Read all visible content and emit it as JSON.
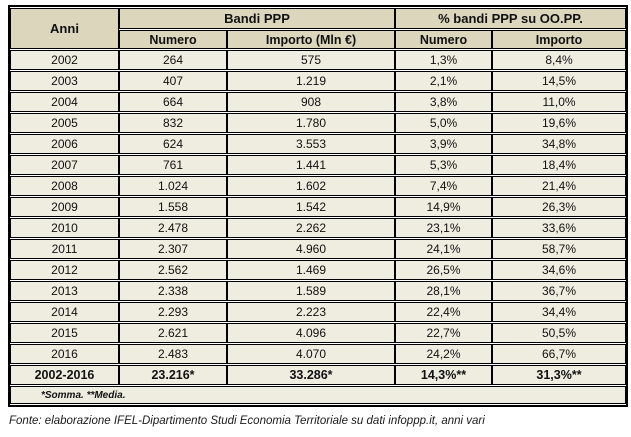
{
  "colors": {
    "header_bg": "#dcd6bc",
    "row_bg": "#efece0",
    "border": "#000000",
    "text": "#111111"
  },
  "chart_data": {
    "type": "table",
    "corner": "Anni",
    "groups": [
      "Bandi PPP",
      "% bandi PPP su OO.PP."
    ],
    "sub_columns": [
      "Numero",
      "Importo (Mln €)",
      "Numero",
      "Importo"
    ],
    "rows": [
      [
        "2002",
        "264",
        "575",
        "1,3%",
        "8,4%"
      ],
      [
        "2003",
        "407",
        "1.219",
        "2,1%",
        "14,5%"
      ],
      [
        "2004",
        "664",
        "908",
        "3,8%",
        "11,0%"
      ],
      [
        "2005",
        "832",
        "1.780",
        "5,0%",
        "19,6%"
      ],
      [
        "2006",
        "624",
        "3.553",
        "3,9%",
        "34,8%"
      ],
      [
        "2007",
        "761",
        "1.441",
        "5,3%",
        "18,4%"
      ],
      [
        "2008",
        "1.024",
        "1.602",
        "7,4%",
        "21,4%"
      ],
      [
        "2009",
        "1.558",
        "1.542",
        "14,9%",
        "26,3%"
      ],
      [
        "2010",
        "2.478",
        "2.262",
        "23,1%",
        "33,6%"
      ],
      [
        "2011",
        "2.307",
        "4.960",
        "24,1%",
        "58,7%"
      ],
      [
        "2012",
        "2.562",
        "1.469",
        "26,5%",
        "34,6%"
      ],
      [
        "2013",
        "2.338",
        "1.589",
        "28,1%",
        "36,7%"
      ],
      [
        "2014",
        "2.293",
        "2.223",
        "22,4%",
        "34,4%"
      ],
      [
        "2015",
        "2.621",
        "4.096",
        "22,7%",
        "50,5%"
      ],
      [
        "2016",
        "2.483",
        "4.070",
        "24,2%",
        "66,7%"
      ]
    ],
    "total": [
      "2002-2016",
      "23.216*",
      "33.286*",
      "14,3%**",
      "31,3%**"
    ],
    "footnote": "*Somma. **Media.",
    "source": "Fonte: elaborazione IFEL-Dipartimento Studi Economia Territoriale su dati infoppp.it, anni vari"
  }
}
